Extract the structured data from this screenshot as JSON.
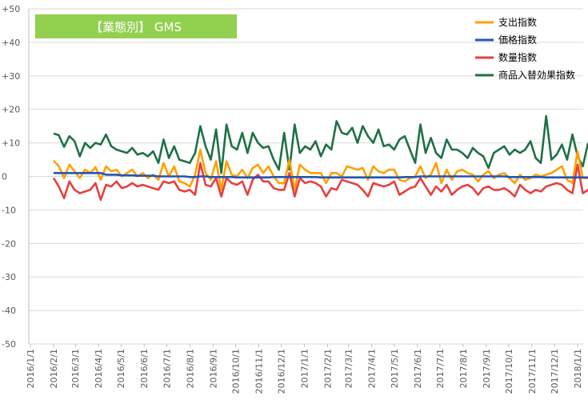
{
  "chart_data": {
    "type": "line",
    "badge": "【業態別】 GMS",
    "badge_color": "#92d050",
    "ylim": [
      -50,
      50
    ],
    "y_ticks": [
      "+50",
      "+40",
      "+30",
      "+20",
      "+10",
      "0",
      "-10",
      "-20",
      "-30",
      "-40",
      "-50"
    ],
    "y_tick_values": [
      50,
      40,
      30,
      20,
      10,
      0,
      -10,
      -20,
      -30,
      -40,
      -50
    ],
    "grid": true,
    "legend_position": "top-right",
    "x_labels": [
      "2016/1/1",
      "2016/2/1",
      "2016/3/1",
      "2016/4/1",
      "2016/5/1",
      "2016/6/1",
      "2016/7/1",
      "2016/8/1",
      "2016/9/1",
      "2016/10/1",
      "2016/11/1",
      "2016/12/1",
      "2017/1/1",
      "2017/2/1",
      "2017/3/1",
      "2017/4/1",
      "2017/5/1",
      "2017/6/1",
      "2017/7/1",
      "2017/8/1",
      "2017/9/1",
      "2017/10/1",
      "2017/11/1",
      "2017/12/1",
      "2018/1/1"
    ],
    "x_start": "2016/2/1",
    "x_step_days": 7,
    "series": [
      {
        "name": "支出指数",
        "color": "#ffa000",
        "values": [
          4.7,
          3.0,
          -0.5,
          3.5,
          1.5,
          -0.5,
          2.0,
          1.0,
          2.8,
          -1.0,
          3.0,
          1.5,
          2.0,
          0.0,
          1.0,
          2.0,
          0.0,
          1.0,
          -0.5,
          0.5,
          -1.0,
          4.0,
          0.0,
          3.0,
          -1.5,
          -2.0,
          -3.0,
          0.5,
          8.0,
          1.0,
          -1.0,
          4.5,
          -4.0,
          4.5,
          0.5,
          0.0,
          2.0,
          -0.5,
          2.5,
          3.5,
          1.0,
          3.0,
          0.0,
          -2.0,
          -2.0,
          5.0,
          -4.0,
          3.5,
          2.0,
          1.0,
          1.0,
          1.0,
          -2.0,
          1.0,
          1.0,
          0.0,
          3.0,
          2.5,
          2.0,
          2.5,
          -1.0,
          3.0,
          1.5,
          1.0,
          2.0,
          2.0,
          -1.0,
          -1.5,
          -0.5,
          0.0,
          3.0,
          -0.5,
          0.5,
          4.0,
          -2.0,
          2.0,
          -1.0,
          1.5,
          2.0,
          1.0,
          0.5,
          -1.5,
          0.5,
          1.5,
          -0.5,
          0.5,
          1.0,
          -0.5,
          -2.0,
          0.5,
          -1.0,
          -0.5,
          0.5,
          0.0,
          0.5,
          1.0,
          2.0,
          3.0,
          -1.0,
          -2.0,
          7.5,
          -0.5,
          -0.5,
          1.0,
          -0.5,
          4.5,
          -1.0,
          -1.5,
          2.5
        ]
      },
      {
        "name": "価格指数",
        "color": "#2455b5",
        "values": [
          1.0,
          1.0,
          1.0,
          1.0,
          1.0,
          1.0,
          1.0,
          1.0,
          1.0,
          1.0,
          0.5,
          0.5,
          0.5,
          0.3,
          0.3,
          0.3,
          0.2,
          0.2,
          0.2,
          0.2,
          0.0,
          0.0,
          0.0,
          0.0,
          0.0,
          0.0,
          -0.2,
          -0.2,
          0.0,
          0.0,
          -0.2,
          -0.2,
          -0.2,
          -0.2,
          -0.2,
          -0.3,
          -0.3,
          -0.3,
          -0.3,
          -0.3,
          -0.3,
          -0.3,
          -0.2,
          -0.2,
          -0.2,
          -0.2,
          -0.2,
          -0.2,
          -0.2,
          -0.2,
          -0.2,
          -0.3,
          -0.3,
          -0.3,
          -0.3,
          -0.3,
          -0.3,
          -0.3,
          -0.3,
          -0.3,
          -0.3,
          -0.3,
          -0.3,
          -0.3,
          -0.3,
          -0.3,
          -0.3,
          -0.2,
          -0.2,
          -0.2,
          0.0,
          0.0,
          0.0,
          0.0,
          0.0,
          0.0,
          0.0,
          0.0,
          0.0,
          0.0,
          0.0,
          0.0,
          0.0,
          0.0,
          0.0,
          0.0,
          0.0,
          -0.2,
          -0.2,
          -0.2,
          -0.2,
          -0.2,
          -0.2,
          -0.2,
          -0.3,
          -0.3,
          -0.3,
          -0.3,
          -0.3,
          -0.3,
          -0.3,
          -0.3,
          -0.3,
          -0.3,
          -0.3,
          -0.3,
          -0.3,
          -0.5,
          -0.5
        ]
      },
      {
        "name": "数量指数",
        "color": "#e83f3f",
        "values": [
          -0.5,
          -3.0,
          -6.5,
          -1.5,
          -4.0,
          -5.0,
          -4.5,
          -4.0,
          -2.0,
          -7.0,
          -2.5,
          -3.0,
          -1.5,
          -3.5,
          -3.0,
          -2.0,
          -3.0,
          -2.5,
          -3.0,
          -3.5,
          -4.0,
          -1.5,
          -2.0,
          -1.5,
          -4.0,
          -4.5,
          -4.0,
          -5.5,
          4.0,
          -2.5,
          -3.0,
          -0.5,
          -6.0,
          -0.5,
          -2.0,
          -2.5,
          -1.5,
          -5.5,
          -1.0,
          0.5,
          -1.5,
          -1.5,
          -3.5,
          -4.0,
          -4.0,
          1.0,
          -6.0,
          -0.5,
          -2.0,
          -1.5,
          -2.0,
          -3.0,
          -6.0,
          -3.5,
          -4.0,
          -1.0,
          -1.5,
          -2.0,
          -2.5,
          -4.0,
          -6.0,
          -2.0,
          -2.5,
          -3.0,
          -2.5,
          -1.5,
          -5.5,
          -4.5,
          -3.5,
          -3.0,
          -0.5,
          -3.0,
          -5.5,
          -3.0,
          -4.5,
          -2.5,
          -5.5,
          -4.0,
          -3.0,
          -2.5,
          -3.5,
          -5.5,
          -3.5,
          -3.0,
          -4.0,
          -4.0,
          -3.5,
          -4.5,
          -6.0,
          -2.5,
          -4.0,
          -5.0,
          -4.0,
          -4.5,
          -3.0,
          -2.5,
          -2.0,
          -2.5,
          -4.0,
          -5.0,
          3.5,
          -5.0,
          -4.0,
          -3.0,
          -4.0,
          1.0,
          -3.5,
          -4.5,
          -0.5
        ]
      },
      {
        "name": "商品入替効果指数",
        "color": "#1e7145",
        "values": [
          12.8,
          12.3,
          8.8,
          12.0,
          10.5,
          6.0,
          10.0,
          8.5,
          10.0,
          9.5,
          12.5,
          9.0,
          8.0,
          7.5,
          7.0,
          8.5,
          6.5,
          7.0,
          6.0,
          7.5,
          4.0,
          11.0,
          5.5,
          9.0,
          5.0,
          4.5,
          4.0,
          7.0,
          15.0,
          9.0,
          5.0,
          14.0,
          1.0,
          15.5,
          9.0,
          8.0,
          13.0,
          7.0,
          13.0,
          10.0,
          8.5,
          9.0,
          5.0,
          2.0,
          13.0,
          2.0,
          15.5,
          7.0,
          9.0,
          8.0,
          10.5,
          6.0,
          9.5,
          8.0,
          16.5,
          13.0,
          12.5,
          14.5,
          10.0,
          15.0,
          12.0,
          10.0,
          14.0,
          9.0,
          9.5,
          8.0,
          11.0,
          12.0,
          8.0,
          4.0,
          15.5,
          7.0,
          11.5,
          7.0,
          5.5,
          11.0,
          8.0,
          8.0,
          7.0,
          5.5,
          8.5,
          7.0,
          6.0,
          2.5,
          7.0,
          8.0,
          9.0,
          6.5,
          8.0,
          7.0,
          8.0,
          10.5,
          5.5,
          4.0,
          18.0,
          5.0,
          6.5,
          9.5,
          5.0,
          12.5,
          6.0,
          3.0,
          10.0
        ]
      }
    ]
  }
}
